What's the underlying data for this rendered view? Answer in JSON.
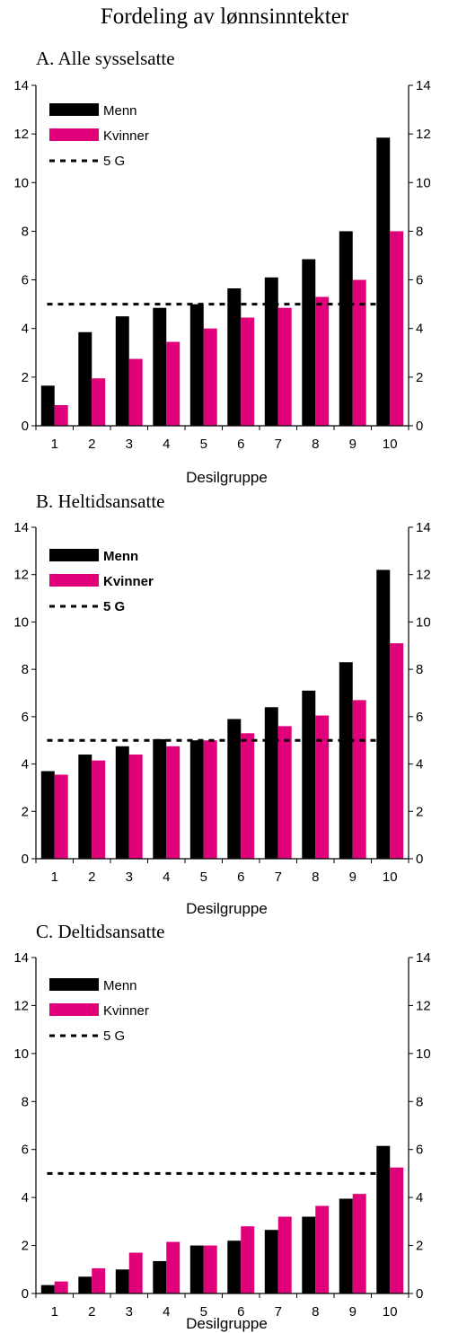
{
  "title": "Fordeling av lønnsinntekter",
  "colors": {
    "men": "#000000",
    "women": "#e0007a",
    "reference": "#000000",
    "axis": "#000000"
  },
  "chart_data": [
    {
      "type": "bar",
      "title": "A. Alle sysselsatte",
      "xlabel": "Desilgruppe",
      "ylabel": "",
      "ylim": [
        0,
        14
      ],
      "yticks": [
        0,
        2,
        4,
        6,
        8,
        10,
        12,
        14
      ],
      "categories": [
        "1",
        "2",
        "3",
        "4",
        "5",
        "6",
        "7",
        "8",
        "9",
        "10"
      ],
      "series": [
        {
          "name": "Menn",
          "values": [
            1.65,
            3.85,
            4.5,
            4.85,
            5.0,
            5.65,
            6.1,
            6.85,
            8.0,
            11.85
          ]
        },
        {
          "name": "Kvinner",
          "values": [
            0.85,
            1.95,
            2.75,
            3.45,
            4.0,
            4.45,
            4.85,
            5.3,
            6.0,
            8.0
          ]
        }
      ],
      "reference_line": {
        "name": "5 G",
        "value": 5,
        "style": "dashed"
      },
      "legend": "top-left",
      "legend_bold": false,
      "grid": false
    },
    {
      "type": "bar",
      "title": "B. Heltidsansatte",
      "xlabel": "Desilgruppe",
      "ylabel": "",
      "ylim": [
        0,
        14
      ],
      "yticks": [
        0,
        2,
        4,
        6,
        8,
        10,
        12,
        14
      ],
      "categories": [
        "1",
        "2",
        "3",
        "4",
        "5",
        "6",
        "7",
        "8",
        "9",
        "10"
      ],
      "series": [
        {
          "name": "Menn",
          "values": [
            3.7,
            4.4,
            4.75,
            5.05,
            5.0,
            5.9,
            6.4,
            7.1,
            8.3,
            12.2
          ]
        },
        {
          "name": "Kvinner",
          "values": [
            3.55,
            4.15,
            4.4,
            4.75,
            5.0,
            5.3,
            5.6,
            6.05,
            6.7,
            9.1
          ]
        }
      ],
      "reference_line": {
        "name": "5 G",
        "value": 5,
        "style": "dashed"
      },
      "legend": "top-left",
      "legend_bold": true,
      "grid": false
    },
    {
      "type": "bar",
      "title": "C. Deltidsansatte",
      "xlabel": "Desilgruppe",
      "ylabel": "",
      "ylim": [
        0,
        14
      ],
      "yticks": [
        0,
        2,
        4,
        6,
        8,
        10,
        12,
        14
      ],
      "categories": [
        "1",
        "2",
        "3",
        "4",
        "5",
        "6",
        "7",
        "8",
        "9",
        "10"
      ],
      "series": [
        {
          "name": "Menn",
          "values": [
            0.35,
            0.7,
            1.0,
            1.35,
            2.0,
            2.2,
            2.65,
            3.2,
            3.95,
            6.15
          ]
        },
        {
          "name": "Kvinner",
          "values": [
            0.5,
            1.05,
            1.7,
            2.15,
            2.0,
            2.8,
            3.2,
            3.65,
            4.15,
            5.25
          ]
        }
      ],
      "reference_line": {
        "name": "5 G",
        "value": 5,
        "style": "dashed"
      },
      "legend": "top-left",
      "legend_bold": false,
      "grid": false
    }
  ]
}
